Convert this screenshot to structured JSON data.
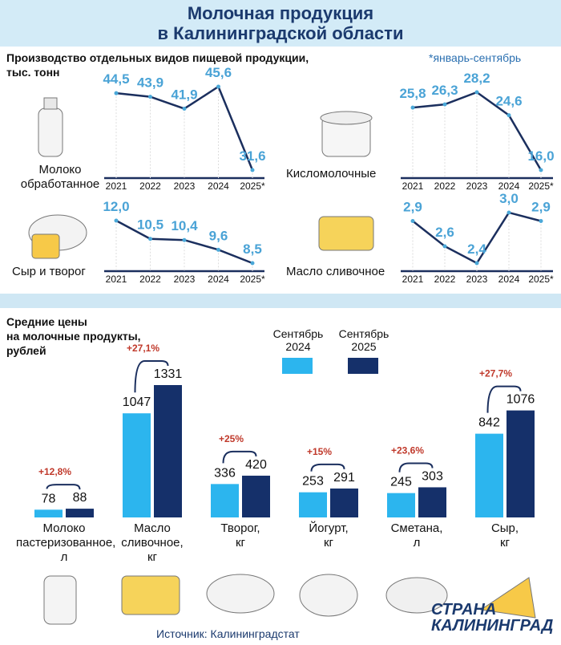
{
  "header": {
    "title": "Молочная продукция\nв Калининградской области"
  },
  "production": {
    "heading": "Производство отдельных видов пищевой продукции,\nтыс. тонн",
    "note": "*январь-сентябрь"
  },
  "chart_data": [
    {
      "type": "line",
      "title": "Молоко\nобработанное",
      "categories": [
        "2021",
        "2022",
        "2023",
        "2024",
        "2025*"
      ],
      "values": [
        44.5,
        43.9,
        41.9,
        45.6,
        31.6
      ],
      "value_labels": [
        "44,5",
        "43,9",
        "41,9",
        "45,6",
        "31,6"
      ],
      "color": "#1b2f5e"
    },
    {
      "type": "line",
      "title": "Кисломолочные",
      "categories": [
        "2021",
        "2022",
        "2023",
        "2024",
        "2025*"
      ],
      "values": [
        25.8,
        26.3,
        28.2,
        24.6,
        16.0
      ],
      "value_labels": [
        "25,8",
        "26,3",
        "28,2",
        "24,6",
        "16,0"
      ],
      "color": "#1b2f5e"
    },
    {
      "type": "line",
      "title": "Сыр и творог",
      "categories": [
        "2021",
        "2022",
        "2023",
        "2024",
        "2025*"
      ],
      "values": [
        12.0,
        10.5,
        10.4,
        9.6,
        8.5
      ],
      "value_labels": [
        "12,0",
        "10,5",
        "10,4",
        "9,6",
        "8,5"
      ],
      "color": "#1b2f5e"
    },
    {
      "type": "line",
      "title": "Масло сливочное",
      "categories": [
        "2021",
        "2022",
        "2023",
        "2024",
        "2025*"
      ],
      "values": [
        2.9,
        2.6,
        2.4,
        3.0,
        2.9
      ],
      "value_labels": [
        "2,9",
        "2,6",
        "2,4",
        "3,0",
        "2,9"
      ],
      "color": "#1b2f5e"
    },
    {
      "type": "bar",
      "title": "Средние цены\nна молочные продукты,\nрублей",
      "categories": [
        "Молоко\nпастеризованное,\nл",
        "Масло\nсливочное,\nкг",
        "Творог,\nкг",
        "Йогурт,\nкг",
        "Сметана,\nл",
        "Сыр,\nкг"
      ],
      "series": [
        {
          "name": "Сентябрь\n2024",
          "color": "#2cb5ee",
          "values": [
            78,
            1047,
            336,
            253,
            245,
            842
          ]
        },
        {
          "name": "Сентябрь\n2025",
          "color": "#15306a",
          "values": [
            88,
            1331,
            420,
            291,
            303,
            1076
          ]
        }
      ],
      "annotations": [
        "+12,8%",
        "+27,1%",
        "+25%",
        "+15%",
        "+23,6%",
        "+27,7%"
      ]
    }
  ],
  "source": "Источник: Калининградстат",
  "watermark": "СТРАНА\nКАЛИНИНГРАД"
}
